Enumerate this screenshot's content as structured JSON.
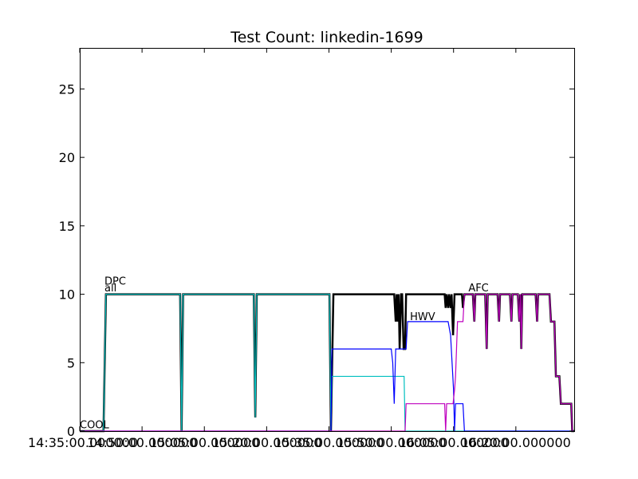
{
  "chart_data": {
    "type": "line",
    "title": "Test Count: linkedin-1699",
    "xlabel": "",
    "ylabel": "",
    "xlim": [
      0,
      100
    ],
    "ylim": [
      0,
      28
    ],
    "grid": false,
    "legend": "none",
    "yticks": [
      0,
      5,
      10,
      15,
      20,
      25
    ],
    "xticks": [
      {
        "x": 0,
        "label": "14:35:00.000000"
      },
      {
        "x": 12.6,
        "label": "14:50:00.000000"
      },
      {
        "x": 25.2,
        "label": "15:05:00.000000"
      },
      {
        "x": 37.8,
        "label": "15:20:00.000000"
      },
      {
        "x": 50.4,
        "label": "15:35:00.000000"
      },
      {
        "x": 63.0,
        "label": "15:50:00.000000"
      },
      {
        "x": 75.6,
        "label": "16:05:00.000000"
      },
      {
        "x": 88.2,
        "label": "16:20:00.000000"
      }
    ],
    "annotations": [
      {
        "text": "COOL",
        "x": 0,
        "y": 0.2
      },
      {
        "text": "all",
        "x": 5,
        "y": 10.2
      },
      {
        "text": "DPC",
        "x": 5,
        "y": 10.7
      },
      {
        "text": "HWV",
        "x": 66.8,
        "y": 8.1
      },
      {
        "text": "AFC",
        "x": 78.6,
        "y": 10.2
      }
    ],
    "series": [
      {
        "color": "#000000",
        "width": 2.5,
        "points": [
          [
            0,
            0
          ],
          [
            4.8,
            0
          ],
          [
            5.3,
            10
          ],
          [
            20.3,
            10
          ],
          [
            20.6,
            0
          ],
          [
            20.9,
            10
          ],
          [
            35.2,
            10
          ],
          [
            35.5,
            1
          ],
          [
            35.8,
            10
          ],
          [
            50.5,
            10
          ],
          [
            50.8,
            0
          ],
          [
            51.3,
            10
          ],
          [
            63.6,
            10
          ],
          [
            63.9,
            8
          ],
          [
            64.1,
            10
          ],
          [
            64.3,
            8
          ],
          [
            64.5,
            10
          ],
          [
            64.7,
            6
          ],
          [
            65.0,
            10
          ],
          [
            65.2,
            10
          ],
          [
            65.5,
            6
          ],
          [
            65.8,
            6
          ],
          [
            66.0,
            10
          ],
          [
            73.8,
            10
          ],
          [
            74.0,
            9
          ],
          [
            74.2,
            10
          ],
          [
            74.5,
            9
          ],
          [
            74.7,
            10
          ],
          [
            75.0,
            9
          ],
          [
            75.2,
            10
          ],
          [
            75.5,
            7
          ],
          [
            75.8,
            10
          ],
          [
            77.3,
            10
          ],
          [
            77.5,
            9
          ],
          [
            77.8,
            10
          ],
          [
            79.5,
            10
          ],
          [
            79.8,
            8
          ],
          [
            80.0,
            10
          ],
          [
            82.0,
            10
          ],
          [
            82.3,
            6
          ],
          [
            82.5,
            10
          ],
          [
            84.5,
            10
          ],
          [
            84.8,
            8
          ],
          [
            85.0,
            10
          ],
          [
            87.0,
            10
          ],
          [
            87.3,
            8
          ],
          [
            87.5,
            10
          ],
          [
            88.6,
            10
          ],
          [
            88.9,
            8
          ],
          [
            89.1,
            10
          ],
          [
            89.3,
            6
          ],
          [
            89.5,
            10
          ],
          [
            92.2,
            10
          ],
          [
            92.5,
            8
          ],
          [
            92.7,
            10
          ],
          [
            95.0,
            10
          ],
          [
            95.3,
            8
          ],
          [
            96.0,
            8
          ],
          [
            96.3,
            4
          ],
          [
            97.0,
            4
          ],
          [
            97.3,
            2
          ],
          [
            99.4,
            2
          ],
          [
            99.6,
            0
          ],
          [
            100,
            0
          ]
        ]
      },
      {
        "color": "#00bfbf",
        "width": 1.2,
        "points": [
          [
            0,
            0
          ],
          [
            4.8,
            0
          ],
          [
            5.3,
            10
          ],
          [
            20.3,
            10
          ],
          [
            20.6,
            0
          ],
          [
            20.9,
            10
          ],
          [
            35.2,
            10
          ],
          [
            35.5,
            1
          ],
          [
            35.8,
            10
          ],
          [
            50.5,
            10
          ],
          [
            50.8,
            0
          ],
          [
            51.0,
            4
          ],
          [
            65.0,
            4
          ],
          [
            65.3,
            4
          ],
          [
            65.6,
            4
          ],
          [
            65.8,
            0
          ],
          [
            100,
            0
          ]
        ]
      },
      {
        "color": "#0000ff",
        "width": 1.2,
        "points": [
          [
            0,
            0
          ],
          [
            50.8,
            0
          ],
          [
            51.0,
            6
          ],
          [
            63.0,
            6
          ],
          [
            63.3,
            5
          ],
          [
            63.6,
            2
          ],
          [
            63.9,
            6
          ],
          [
            66.0,
            6
          ],
          [
            66.3,
            8
          ],
          [
            74.5,
            8
          ],
          [
            75.0,
            7
          ],
          [
            75.3,
            5
          ],
          [
            75.6,
            3
          ],
          [
            75.8,
            0
          ],
          [
            76.0,
            2
          ],
          [
            77.5,
            2
          ],
          [
            77.8,
            0
          ],
          [
            100,
            0
          ]
        ]
      },
      {
        "color": "#bf00bf",
        "width": 1.2,
        "points": [
          [
            0,
            0
          ],
          [
            65.8,
            0
          ],
          [
            66.0,
            2
          ],
          [
            73.8,
            2
          ],
          [
            74.0,
            0
          ],
          [
            74.2,
            2
          ],
          [
            75.5,
            2
          ],
          [
            75.8,
            3
          ],
          [
            76.0,
            4
          ],
          [
            76.2,
            6
          ],
          [
            76.4,
            8
          ],
          [
            77.5,
            8
          ],
          [
            77.8,
            10
          ],
          [
            79.5,
            10
          ],
          [
            79.8,
            8
          ],
          [
            80.0,
            10
          ],
          [
            82.0,
            10
          ],
          [
            82.3,
            6
          ],
          [
            82.5,
            10
          ],
          [
            84.5,
            10
          ],
          [
            84.8,
            8
          ],
          [
            85.0,
            10
          ],
          [
            87.0,
            10
          ],
          [
            87.3,
            8
          ],
          [
            87.5,
            10
          ],
          [
            88.6,
            10
          ],
          [
            88.9,
            8
          ],
          [
            89.1,
            10
          ],
          [
            89.3,
            6
          ],
          [
            89.5,
            10
          ],
          [
            92.2,
            10
          ],
          [
            92.5,
            8
          ],
          [
            92.7,
            10
          ],
          [
            95.0,
            10
          ],
          [
            95.3,
            8
          ],
          [
            96.0,
            8
          ],
          [
            96.3,
            4
          ],
          [
            97.0,
            4
          ],
          [
            97.3,
            2
          ],
          [
            99.4,
            2
          ],
          [
            99.6,
            0
          ],
          [
            100,
            0
          ]
        ]
      }
    ]
  }
}
